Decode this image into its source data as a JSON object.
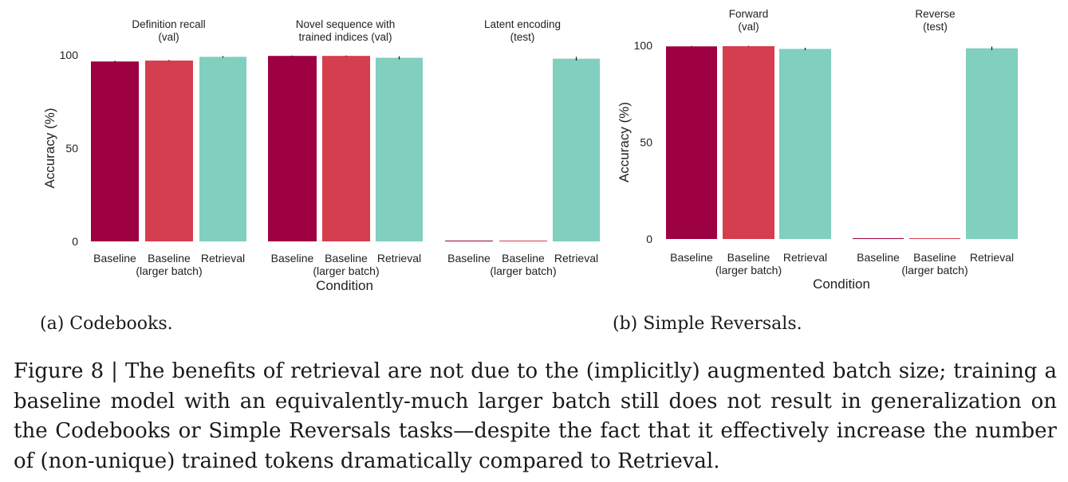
{
  "chart_data": [
    {
      "id": "codebooks",
      "type": "bar",
      "subtitle": "(a) Codebooks.",
      "ylabel": "Accuracy (%)",
      "xlabel": "Condition",
      "ylim": [
        0,
        100
      ],
      "yticks": [
        0,
        50,
        100
      ],
      "categories": [
        "Baseline",
        "Baseline\n(larger batch)",
        "Retrieval"
      ],
      "colors": [
        "#9e0142",
        "#d53e4f",
        "#80cfbf"
      ],
      "grid": false,
      "panels": [
        {
          "title": "Definition recall\n(val)",
          "values": [
            96.5,
            97,
            99
          ],
          "errors": [
            0.4,
            0.3,
            0.4
          ]
        },
        {
          "title": "Novel sequence with\ntrained indices (val)",
          "values": [
            99.5,
            99.5,
            98.5
          ],
          "errors": [
            0.2,
            0.2,
            0.8
          ]
        },
        {
          "title": "Latent encoding\n(test)",
          "values": [
            0.3,
            0.3,
            98
          ],
          "errors": [
            0,
            0,
            1.0
          ]
        }
      ]
    },
    {
      "id": "simple-reversals",
      "type": "bar",
      "subtitle": "(b) Simple Reversals.",
      "ylabel": "Accuracy (%)",
      "xlabel": "Condition",
      "ylim": [
        0,
        100
      ],
      "yticks": [
        0,
        50,
        100
      ],
      "categories": [
        "Baseline",
        "Baseline\n(larger batch)",
        "Retrieval"
      ],
      "colors": [
        "#9e0142",
        "#d53e4f",
        "#80cfbf"
      ],
      "grid": false,
      "panels": [
        {
          "title": "Forward\n(val)",
          "values": [
            99.5,
            99.6,
            98.2
          ],
          "errors": [
            0.2,
            0.2,
            0.6
          ]
        },
        {
          "title": "Reverse\n(test)",
          "values": [
            0.1,
            0.1,
            98.5
          ],
          "errors": [
            0,
            0,
            0.9
          ]
        }
      ]
    }
  ],
  "caption": "Figure 8 | The benefits of retrieval are not due to the (implicitly) augmented batch size; training a baseline model with an equivalently-much larger batch still does not result in generalization on the Codebooks or Simple Reversals tasks—despite the fact that it effectively increase the number of (non-unique) trained tokens dramatically compared to Retrieval."
}
